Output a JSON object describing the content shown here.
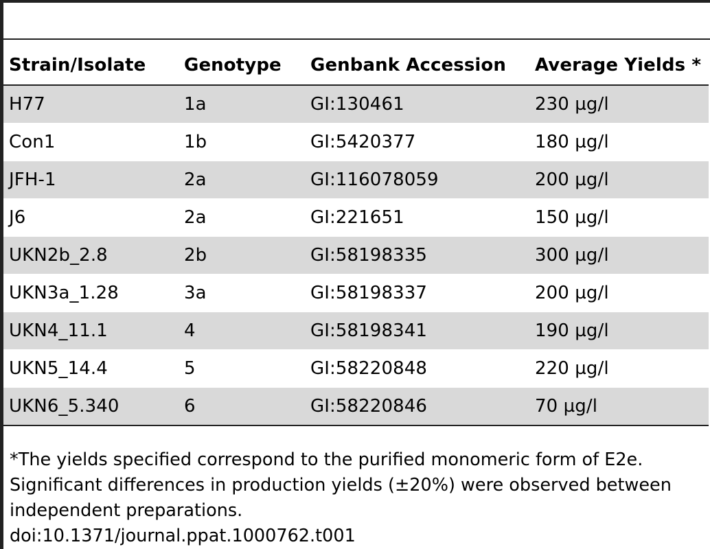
{
  "table": {
    "headers": [
      "Strain/Isolate",
      "Genotype",
      "Genbank Accession",
      "Average Yields *"
    ],
    "rows": [
      [
        "H77",
        "1a",
        "GI:130461",
        "230 µg/l"
      ],
      [
        "Con1",
        "1b",
        "GI:5420377",
        "180 µg/l"
      ],
      [
        "JFH-1",
        "2a",
        "GI:116078059",
        "200 µg/l"
      ],
      [
        "J6",
        "2a",
        "GI:221651",
        "150 µg/l"
      ],
      [
        "UKN2b_2.8",
        "2b",
        "GI:58198335",
        "300 µg/l"
      ],
      [
        "UKN3a_1.28",
        "3a",
        "GI:58198337",
        "200 µg/l"
      ],
      [
        "UKN4_11.1",
        "4",
        "GI:58198341",
        "190 µg/l"
      ],
      [
        "UKN5_14.4",
        "5",
        "GI:58220848",
        "220 µg/l"
      ],
      [
        "UKN6_5.340",
        "6",
        "GI:58220846",
        "70 µg/l"
      ]
    ]
  },
  "footnote": {
    "note": "*The yields specified correspond to the purified monomeric form of E2e. Significant differences in production yields (±20%) were observed between independent preparations.",
    "doi": "doi:10.1371/journal.ppat.1000762.t001"
  },
  "colors": {
    "stripe": "#d9d9d9",
    "rule": "#222222"
  }
}
